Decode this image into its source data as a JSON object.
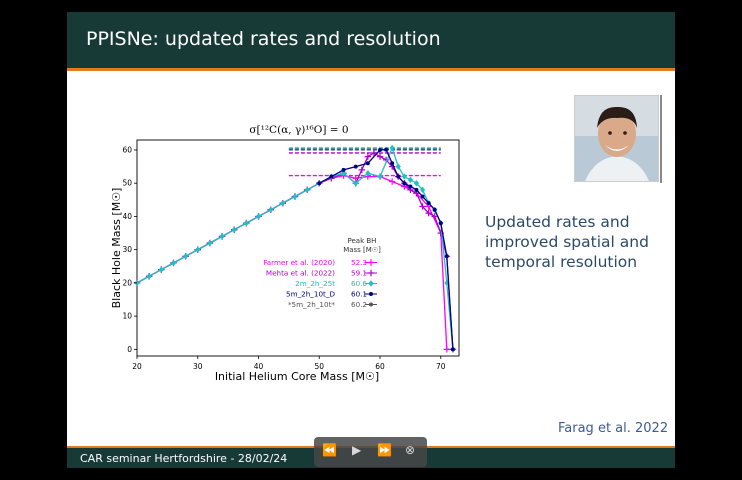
{
  "slide": {
    "title": "PPISNe: updated rates and resolution",
    "body_text": "Updated rates and improved spatial and temporal resolution",
    "citation": "Farag et al. 2022",
    "footer": "CAR seminar Hertfordshire - 28/02/24"
  },
  "colors": {
    "header_bg": "#173a36",
    "accent": "#e07b20",
    "body_text": "#2c4a68",
    "citation": "#3d5a98"
  },
  "media_controls": {
    "rewind_icon": "⏪",
    "play_icon": "▶",
    "forward_icon": "⏩",
    "close_icon": "⊗"
  },
  "chart_data": {
    "type": "line",
    "title": "σ[¹²C(α, γ)¹⁶O] = 0",
    "xlabel": "Initial Helium Core Mass [M☉]",
    "ylabel": "Black Hole Mass [M☉]",
    "xlim": [
      20,
      73
    ],
    "ylim": [
      -2,
      63
    ],
    "x_ticks": [
      "20",
      "30",
      "40",
      "50",
      "60",
      "70"
    ],
    "y_ticks": [
      "0",
      "10",
      "20",
      "30",
      "40",
      "50",
      "60"
    ],
    "grid": false,
    "legend_header": "Peak BH\nMass [M☉]",
    "legend_position": "center-right",
    "series": [
      {
        "name": "Farmer et al. (2020)",
        "peak": "52.3",
        "color": "#ff00ff",
        "marker": "plus",
        "x": [
          20,
          22,
          24,
          26,
          28,
          30,
          32,
          34,
          36,
          38,
          40,
          42,
          44,
          46,
          48,
          50,
          52,
          54,
          56,
          58,
          60,
          62,
          64,
          66,
          68,
          70,
          71,
          72
        ],
        "y": [
          20,
          22,
          24,
          26,
          28,
          30,
          32,
          34,
          36,
          38,
          40,
          42,
          44,
          46,
          48,
          50,
          51.5,
          52.3,
          51.5,
          52,
          52,
          50.5,
          49,
          47,
          43,
          35,
          0,
          0
        ]
      },
      {
        "name": "Mehta et al. (2022)",
        "peak": "59.1",
        "color": "#b000d0",
        "marker": "plus",
        "x": [
          20,
          22,
          24,
          26,
          28,
          30,
          32,
          34,
          36,
          38,
          40,
          42,
          44,
          46,
          48,
          50,
          52,
          54,
          56,
          57,
          58,
          59,
          60,
          61,
          62,
          63,
          64,
          65,
          66,
          67,
          68,
          69,
          70,
          71,
          72
        ],
        "y": [
          20,
          22,
          24,
          26,
          28,
          30,
          32,
          34,
          36,
          38,
          40,
          42,
          44,
          46,
          48,
          50,
          51.5,
          53,
          50,
          54,
          58,
          59.1,
          58,
          57,
          55,
          52,
          50,
          48,
          47,
          43,
          41,
          40,
          35,
          28,
          0
        ]
      },
      {
        "name": "2m_2h_25t",
        "peak": "60.6",
        "color": "#20c0c0",
        "marker": "diamond",
        "x": [
          20,
          22,
          24,
          26,
          28,
          30,
          32,
          34,
          36,
          38,
          40,
          42,
          44,
          46,
          48,
          50,
          52,
          54,
          56,
          58,
          60,
          62,
          63,
          64,
          65,
          66,
          67,
          68,
          69,
          70,
          71,
          72
        ],
        "y": [
          20,
          22,
          24,
          26,
          28,
          30,
          32,
          34,
          36,
          38,
          40,
          42,
          44,
          46,
          48,
          50,
          52,
          53,
          50,
          53,
          52,
          60.6,
          55,
          52,
          51,
          50,
          48,
          44,
          42,
          38,
          20,
          0
        ]
      },
      {
        "name": "5m_2h_10t_D",
        "peak": "60.1",
        "color": "#000080",
        "marker": "circle",
        "x": [
          50,
          52,
          54,
          56,
          58,
          60,
          61,
          62,
          63,
          64,
          65,
          66,
          67,
          68,
          69,
          70,
          71,
          72
        ],
        "y": [
          50,
          52,
          54,
          55,
          56,
          60,
          60.1,
          56,
          52,
          50,
          49,
          48,
          46,
          44,
          42,
          38,
          28,
          0
        ]
      },
      {
        "name": "*5m_2h_10t*",
        "peak": "60.2",
        "color": "#555555",
        "marker": "circle",
        "x": [],
        "y": []
      }
    ]
  }
}
